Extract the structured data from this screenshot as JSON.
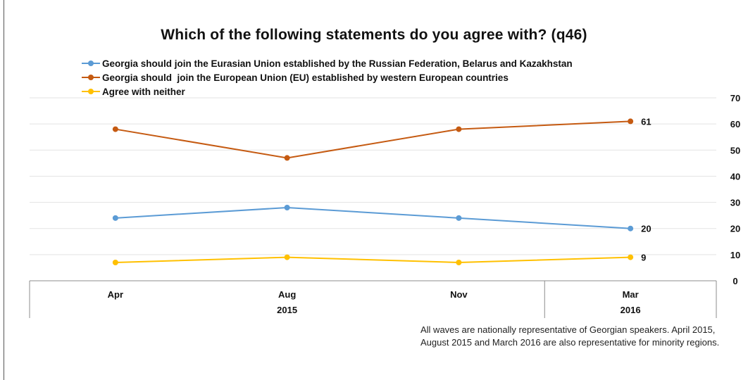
{
  "chart_data": {
    "type": "line",
    "title": "Which of the following statements do you agree with? (q46)",
    "categories": [
      "Apr",
      "Aug",
      "Nov",
      "Mar"
    ],
    "groups": [
      {
        "label": "2015",
        "span": [
          0,
          2
        ]
      },
      {
        "label": "2016",
        "span": [
          3,
          3
        ]
      }
    ],
    "ylim": [
      0,
      70
    ],
    "yticks": [
      0,
      10,
      20,
      30,
      40,
      50,
      60,
      70
    ],
    "y_axis_side": "right",
    "grid": true,
    "legend_position": "top-left",
    "series": [
      {
        "name": "Georgia should join the Eurasian Union established by the Russian Federation, Belarus and Kazakhstan",
        "color": "#5b9bd5",
        "values": [
          24,
          28,
          24,
          20
        ],
        "end_label": "20"
      },
      {
        "name": "Georgia should  join the European Union (EU) established by western European countries",
        "color": "#c55a11",
        "values": [
          58,
          47,
          58,
          61
        ],
        "end_label": "61"
      },
      {
        "name": "Agree with neither",
        "color": "#ffc000",
        "values": [
          7,
          9,
          7,
          9
        ],
        "end_label": "9"
      }
    ]
  },
  "footnote": "All waves are nationally representative of Georgian speakers. April 2015, August 2015 and March 2016 are also representative for minority regions."
}
